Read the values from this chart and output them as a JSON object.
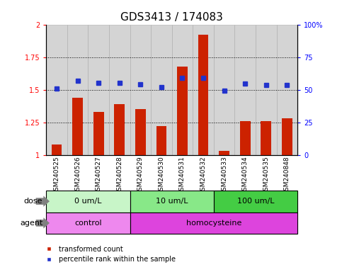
{
  "title": "GDS3413 / 174083",
  "samples": [
    "GSM240525",
    "GSM240526",
    "GSM240527",
    "GSM240528",
    "GSM240529",
    "GSM240530",
    "GSM240531",
    "GSM240532",
    "GSM240533",
    "GSM240534",
    "GSM240535",
    "GSM240848"
  ],
  "red_values": [
    1.08,
    1.44,
    1.33,
    1.39,
    1.35,
    1.22,
    1.68,
    1.92,
    1.03,
    1.26,
    1.26,
    1.28
  ],
  "blue_pct": [
    51,
    57,
    55.5,
    55.5,
    54,
    52,
    59,
    59,
    49.5,
    54.5,
    53.5,
    53.5
  ],
  "ylim_left": [
    1.0,
    2.0
  ],
  "ylim_right": [
    0,
    100
  ],
  "yticks_left": [
    1.0,
    1.25,
    1.5,
    1.75,
    2.0
  ],
  "yticks_right": [
    0,
    25,
    50,
    75,
    100
  ],
  "ytick_labels_left": [
    "1",
    "1.25",
    "1.5",
    "1.75",
    "2"
  ],
  "ytick_labels_right": [
    "0",
    "25",
    "50",
    "75",
    "100%"
  ],
  "hlines": [
    1.25,
    1.5,
    1.75
  ],
  "dose_groups": [
    {
      "label": "0 um/L",
      "start": 0,
      "end": 4,
      "color": "#c8f5c8"
    },
    {
      "label": "10 um/L",
      "start": 4,
      "end": 8,
      "color": "#88e888"
    },
    {
      "label": "100 um/L",
      "start": 8,
      "end": 12,
      "color": "#44cc44"
    }
  ],
  "agent_groups": [
    {
      "label": "control",
      "start": 0,
      "end": 4,
      "color": "#ee88ee"
    },
    {
      "label": "homocysteine",
      "start": 4,
      "end": 12,
      "color": "#dd44dd"
    }
  ],
  "dose_label": "dose",
  "agent_label": "agent",
  "bar_color": "#cc2200",
  "dot_color": "#2233cc",
  "legend_red": "transformed count",
  "legend_blue": "percentile rank within the sample",
  "sample_bg": "#d4d4d4",
  "title_fontsize": 11,
  "tick_fontsize": 7,
  "label_fontsize": 8,
  "bar_width": 0.5
}
